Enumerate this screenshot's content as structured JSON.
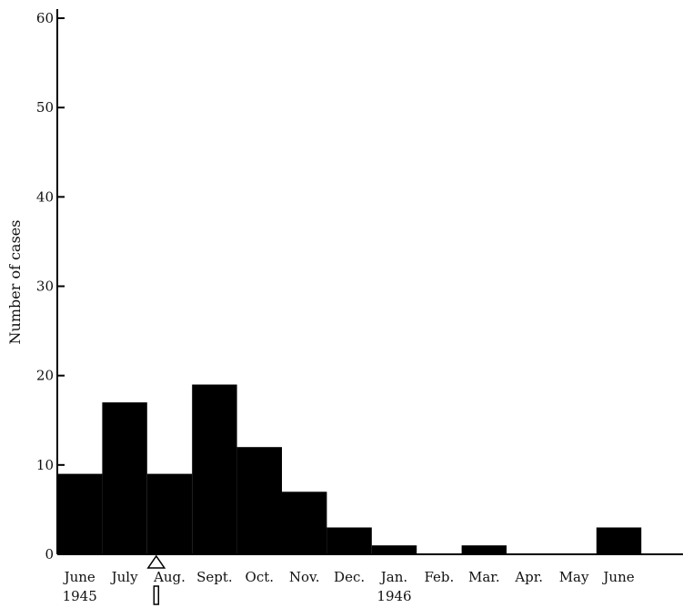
{
  "chart_data": {
    "type": "bar",
    "categories": [
      "June",
      "July",
      "Aug.",
      "Sept.",
      "Oct.",
      "Nov.",
      "Dec.",
      "Jan.",
      "Feb.",
      "Mar.",
      "Apr.",
      "May",
      "June"
    ],
    "year_labels": [
      {
        "category_index": 0,
        "text": "1945"
      },
      {
        "category_index": 7,
        "text": "1946"
      }
    ],
    "values": [
      9,
      17,
      9,
      19,
      12,
      7,
      3,
      1,
      0,
      1,
      0,
      0,
      3
    ],
    "ylabel": "Number of cases",
    "xlabel": "",
    "ylim": [
      0,
      60
    ],
    "yticks": [
      0,
      10,
      20,
      30,
      40,
      50,
      60
    ],
    "bar_color": "#000000",
    "annotation": {
      "category_index": 2,
      "glyph": "triangle-arrow-marker"
    }
  }
}
